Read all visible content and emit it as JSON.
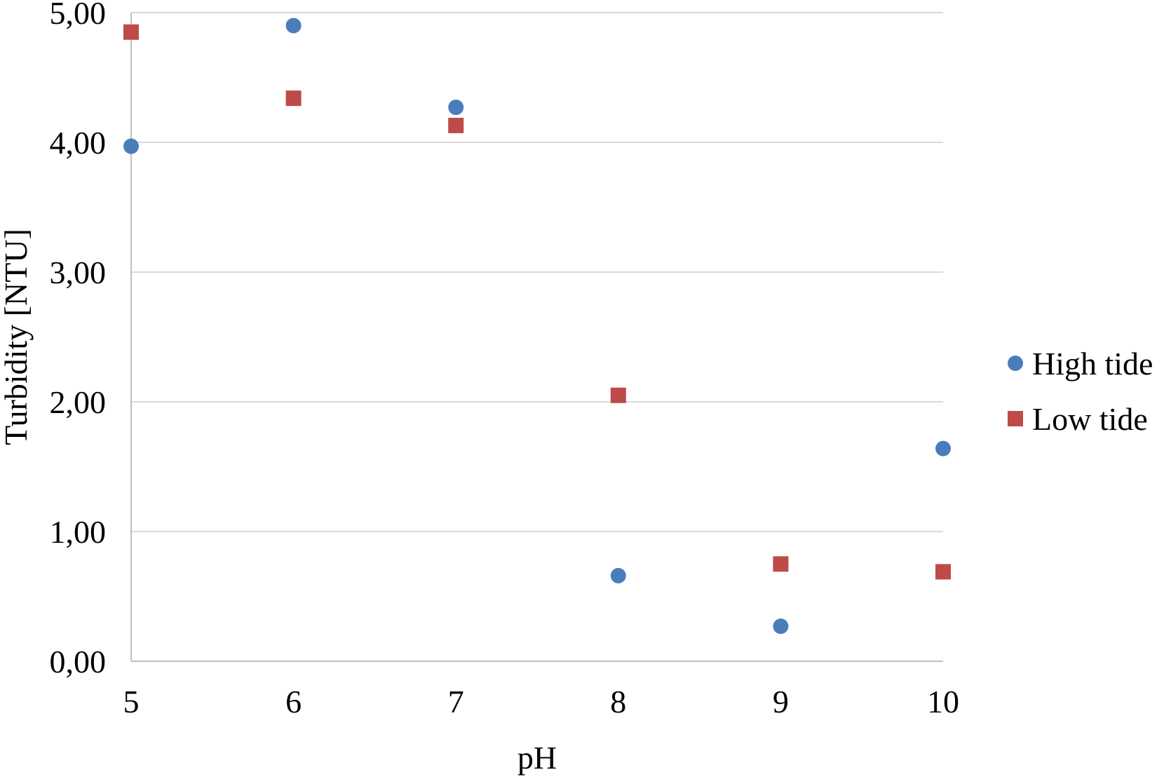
{
  "chart_data": {
    "type": "scatter",
    "title": "",
    "xlabel": "pH",
    "ylabel": "Turbidity [NTU]",
    "xlim": [
      5,
      10
    ],
    "ylim": [
      0,
      5
    ],
    "x_ticks": [
      "5",
      "6",
      "7",
      "8",
      "9",
      "10"
    ],
    "y_ticks": [
      "0,00",
      "1,00",
      "2,00",
      "3,00",
      "4,00",
      "5,00"
    ],
    "grid": "horizontal",
    "legend_position": "right",
    "series": [
      {
        "name": "High tide",
        "marker": "circle",
        "color": "#4a7ebb",
        "x": [
          5,
          6,
          7,
          8,
          9,
          10
        ],
        "y": [
          3.97,
          4.9,
          4.27,
          0.66,
          0.27,
          1.64
        ]
      },
      {
        "name": "Low tide",
        "marker": "square",
        "color": "#be4b48",
        "x": [
          5,
          6,
          7,
          8,
          9,
          10
        ],
        "y": [
          4.85,
          4.34,
          4.13,
          2.05,
          0.75,
          0.69
        ]
      }
    ]
  }
}
